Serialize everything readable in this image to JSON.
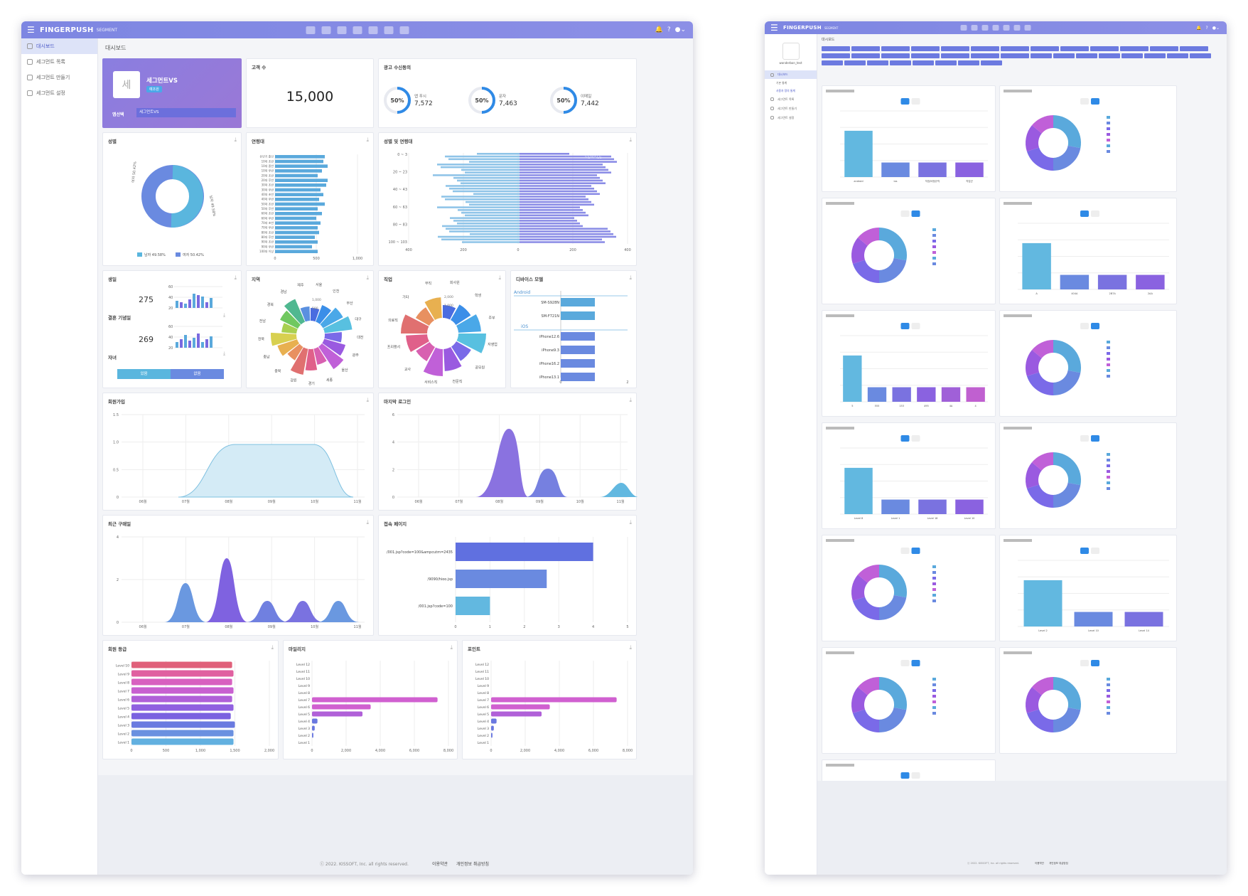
{
  "app": {
    "brand": "FINGERPUSH",
    "sub": "SEGMENT"
  },
  "sidebar": {
    "items": [
      "대시보드",
      "세그먼트 목록",
      "세그먼트 만들기",
      "세그먼트 설정"
    ]
  },
  "breadcrumb": "대시보드",
  "segment": {
    "icon_char": "세",
    "name": "세그먼트VS",
    "badge": "예조원",
    "select_label": "앱선택",
    "select_value": "세그먼트VS"
  },
  "customers": {
    "title": "고객 수",
    "value": "15,000"
  },
  "consent": {
    "title": "광고 수신동의",
    "items": [
      {
        "pct": "50%",
        "label": "앱 푸시",
        "value": "7,572"
      },
      {
        "pct": "50%",
        "label": "문자",
        "value": "7,463"
      },
      {
        "pct": "50%",
        "label": "이메일",
        "value": "7,442"
      }
    ]
  },
  "colors": {
    "blue": "#5aa9dc",
    "violet": "#6f6fe0",
    "purple": "#7f5fe0",
    "red": "#e0607a",
    "magenta": "#d060d0",
    "header": "#8088e4"
  },
  "gender": {
    "title": "성별",
    "legend": [
      {
        "label": "남자 49.58%",
        "color": "#5ab6de"
      },
      {
        "label": "여자 50.42%",
        "color": "#6a8ae0"
      }
    ],
    "left_label": "여자 50.42%",
    "right_label": "남자 49.58%"
  },
  "age": {
    "title": "연령대",
    "labels": [
      "유년기 출신",
      "10대 초반",
      "10대 중반",
      "10대 후반",
      "20대 초반",
      "20대 후반",
      "30대 초반",
      "30대 후반",
      "40대 초반",
      "40대 후반",
      "50대 초반",
      "50대 후반",
      "60대 초반",
      "60대 후반",
      "70대 초반",
      "70대 후반",
      "80대 초반",
      "80대 후반",
      "90대 초반",
      "90대 후반",
      "100대 이상"
    ],
    "ticks": [
      "0",
      "500",
      "1,000"
    ]
  },
  "gender_age": {
    "title": "성별 및 연령대",
    "ylabels": [
      "0 ~ 3",
      "20 ~ 23",
      "40 ~ 43",
      "60 ~ 63",
      "80 ~ 83",
      "100 ~ 103"
    ],
    "xlabels": [
      "400",
      "200",
      "0",
      "200",
      "400"
    ],
    "series_label": "FEMALE"
  },
  "birthday": {
    "title": "생일",
    "value": "275",
    "ticks": [
      "60",
      "40",
      "20"
    ]
  },
  "anniversary": {
    "title": "결혼 기념일",
    "value": "269"
  },
  "children": {
    "title": "자녀",
    "yes": "있음",
    "no": "없음"
  },
  "region": {
    "title": "지역",
    "labels": [
      "서울",
      "인천",
      "부산",
      "대구",
      "대전",
      "광주",
      "울산",
      "세종",
      "경기",
      "강원",
      "충북",
      "충남",
      "전북",
      "전남",
      "경북",
      "경남",
      "제주"
    ],
    "ticks": [
      "1,000",
      "500"
    ]
  },
  "job": {
    "title": "직업",
    "labels": [
      "회사원",
      "학생",
      "주부",
      "자영업",
      "공무원",
      "전문직",
      "서비스직",
      "교사",
      "프리랜서",
      "의료직",
      "기타",
      "무직"
    ],
    "ticks": [
      "2,000",
      "1,000"
    ]
  },
  "device": {
    "title": "디바이스 모델",
    "groups": [
      {
        "os": "Android",
        "items": [
          "SM-S928N",
          "SM-F721N"
        ]
      },
      {
        "os": "iOS",
        "items": [
          "iPhone12.6",
          "iPhone9.3",
          "iPhone16.2",
          "iPhone13.1"
        ]
      }
    ],
    "ticks": [
      "0",
      "2"
    ]
  },
  "signup": {
    "title": "회원가입",
    "yticks": [
      "1.5",
      "1.0",
      "0.5",
      "0"
    ],
    "xticks": [
      "06월",
      "07월",
      "08월",
      "09월",
      "10월",
      "11월"
    ]
  },
  "lastlogin": {
    "title": "마지막 로그인",
    "yticks": [
      "6",
      "4",
      "2",
      "0"
    ],
    "xticks": [
      "06월",
      "07월",
      "08월",
      "09월",
      "10월",
      "11월"
    ]
  },
  "purchase": {
    "title": "최근 구매일",
    "yticks": [
      "4",
      "2",
      "0"
    ],
    "xticks": [
      "06월",
      "07월",
      "08월",
      "09월",
      "10월",
      "11월"
    ]
  },
  "pages": {
    "title": "접속 페이지",
    "items": [
      {
        "label": "/001.jsp?code=100&ampcutm=2435",
        "value": 4
      },
      {
        "label": "/9090/hioo.jsp",
        "value": 2.65
      },
      {
        "label": "/001.jsp?code=100",
        "value": 1
      }
    ],
    "ticks": [
      "0",
      "1",
      "2",
      "3",
      "4",
      "5"
    ]
  },
  "grade": {
    "title": "회원 등급",
    "labels": [
      "Level 10",
      "Level 9",
      "Level 8",
      "Level 7",
      "Level 6",
      "Level 5",
      "Level 4",
      "Level 3",
      "Level 2",
      "Level 1"
    ],
    "ticks": [
      "0",
      "500",
      "1,000",
      "1,500",
      "2,000"
    ]
  },
  "mileage": {
    "title": "마일리지",
    "labels": [
      "Level 12",
      "Level 11",
      "Level 10",
      "Level 9",
      "Level 8",
      "Level 7",
      "Level 6",
      "Level 5",
      "Level 4",
      "Level 3",
      "Level 2",
      "Level 1"
    ],
    "ticks": [
      "0",
      "2,000",
      "4,000",
      "6,000",
      "8,000"
    ]
  },
  "point": {
    "title": "포인트",
    "labels": [
      "Level 12",
      "Level 11",
      "Level 10",
      "Level 9",
      "Level 8",
      "Level 7",
      "Level 6",
      "Level 5",
      "Level 4",
      "Level 3",
      "Level 2",
      "Level 1"
    ],
    "ticks": [
      "0",
      "2,000",
      "4,000",
      "6,000",
      "8,000"
    ]
  },
  "footer": {
    "copy": "ⓒ 2022. KISSOFT, Inc. all rights reserved.",
    "terms": "이용약관",
    "privacy": "개인정보 취급방침"
  },
  "w2": {
    "breadcrumb": "대시보드",
    "user": "wonderbon_test",
    "sub_items": [
      "기본 통계",
      "사용자 정의 통계"
    ],
    "footer_copy": "ⓒ 2022. KISSOFT, Inc. all rights reserved.",
    "terms": "이용약관",
    "privacy": "개인정보 취급방침",
    "bar_xlabels": [
      [
        "android",
        "ios",
        "직장/비정규직",
        "직업군"
      ],
      [
        "A",
        "404A",
        "2B7A",
        "2AA"
      ],
      [
        "5",
        "555",
        "153",
        "495",
        "4A",
        "4"
      ],
      [
        "Level 8",
        "Level 1",
        "Level 18",
        "Level 10"
      ],
      [
        "Level 2",
        "Level 10",
        "Level 14"
      ],
      [
        "Level 6",
        "Level 2",
        "Level 17",
        "Level 22"
      ]
    ]
  }
}
